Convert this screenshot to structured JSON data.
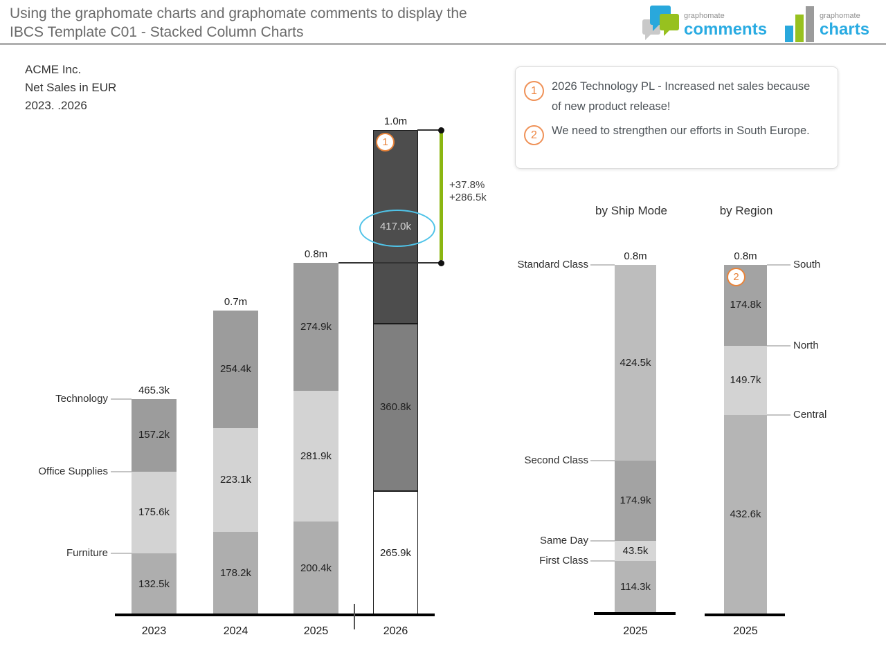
{
  "header": {
    "title_line1": "Using the graphomate charts and graphomate comments to display the",
    "title_line2": "IBCS Template C01 - Stacked Column Charts",
    "logo_comments": {
      "brand": "graphomate",
      "product": "comments"
    },
    "logo_charts": {
      "brand": "graphomate",
      "product": "charts"
    },
    "brand_color": "#29abe2",
    "logo_green": "#97c11f",
    "logo_blue": "#29a8dc",
    "logo_gray": "#9b9b9b"
  },
  "comment_box": {
    "badge_color": "#e8833a",
    "items": [
      {
        "num": "1",
        "text": "2026 Technology PL - Increased net sales because of new product release!"
      },
      {
        "num": "2",
        "text": "We need to strengthen our efforts in South Europe."
      }
    ]
  },
  "chart_data": [
    {
      "type": "bar",
      "stacked": true,
      "title_lines": [
        "ACME Inc.",
        "Net Sales in EUR",
        "2023. .2026"
      ],
      "categories": [
        "2023",
        "2024",
        "2025",
        "2026"
      ],
      "series": [
        {
          "name": "Furniture",
          "values": [
            132.5,
            178.2,
            200.4,
            265.9
          ],
          "labels": [
            "132.5k",
            "178.2k",
            "200.4k",
            "265.9k"
          ],
          "color": "#aeaeae",
          "color_last": "#ffffff"
        },
        {
          "name": "Office Supplies",
          "values": [
            175.6,
            223.1,
            281.9,
            360.8
          ],
          "labels": [
            "175.6k",
            "223.1k",
            "281.9k",
            "360.8k"
          ],
          "color": "#d3d3d3",
          "color_last": "#7f7f7f"
        },
        {
          "name": "Technology",
          "values": [
            157.2,
            254.4,
            274.9,
            417.0
          ],
          "labels": [
            "157.2k",
            "254.4k",
            "274.9k",
            "417.0k"
          ],
          "color": "#9c9c9c",
          "color_last": "#4d4d4d"
        }
      ],
      "totals": [
        "465.3k",
        "0.7m",
        "0.8m",
        "1.0m"
      ],
      "labels_side": "left",
      "last_category_outlined": true,
      "delta": {
        "percent": "+37.8%",
        "absolute": "+286.5k",
        "line_color": "#8bb611"
      },
      "highlight": {
        "series": "Technology",
        "category": "2026",
        "label": "417.0k",
        "ellipse_color": "#4fc3e8"
      },
      "badges": [
        {
          "num": "1",
          "category": "2026"
        }
      ],
      "axis": "categorical, no value axis shown; actual/forecast separator tick between 2025 and 2026"
    },
    {
      "type": "bar",
      "stacked": true,
      "title": "by Ship Mode",
      "categories": [
        "2025"
      ],
      "series": [
        {
          "name": "First Class",
          "values": [
            114.3
          ],
          "labels": [
            "114.3k"
          ],
          "color": "#b5b5b5"
        },
        {
          "name": "Same Day",
          "values": [
            43.5
          ],
          "labels": [
            "43.5k"
          ],
          "color": "#d6d6d6"
        },
        {
          "name": "Second Class",
          "values": [
            174.9
          ],
          "labels": [
            "174.9k"
          ],
          "color": "#a3a3a3"
        },
        {
          "name": "Standard Class",
          "values": [
            424.5
          ],
          "labels": [
            "424.5k"
          ],
          "color": "#bdbdbd"
        }
      ],
      "totals": [
        "0.8m"
      ],
      "labels_side": "left",
      "badges": []
    },
    {
      "type": "bar",
      "stacked": true,
      "title": "by Region",
      "categories": [
        "2025"
      ],
      "series": [
        {
          "name": "Central",
          "values": [
            432.6
          ],
          "labels": [
            "432.6k"
          ],
          "color": "#b5b5b5"
        },
        {
          "name": "North",
          "values": [
            149.7
          ],
          "labels": [
            "149.7k"
          ],
          "color": "#d3d3d3"
        },
        {
          "name": "South",
          "values": [
            174.8
          ],
          "labels": [
            "174.8k"
          ],
          "color": "#a3a3a3"
        }
      ],
      "totals": [
        "0.8m"
      ],
      "labels_side": "right",
      "badges": [
        {
          "num": "2",
          "category": "2025"
        }
      ]
    }
  ]
}
